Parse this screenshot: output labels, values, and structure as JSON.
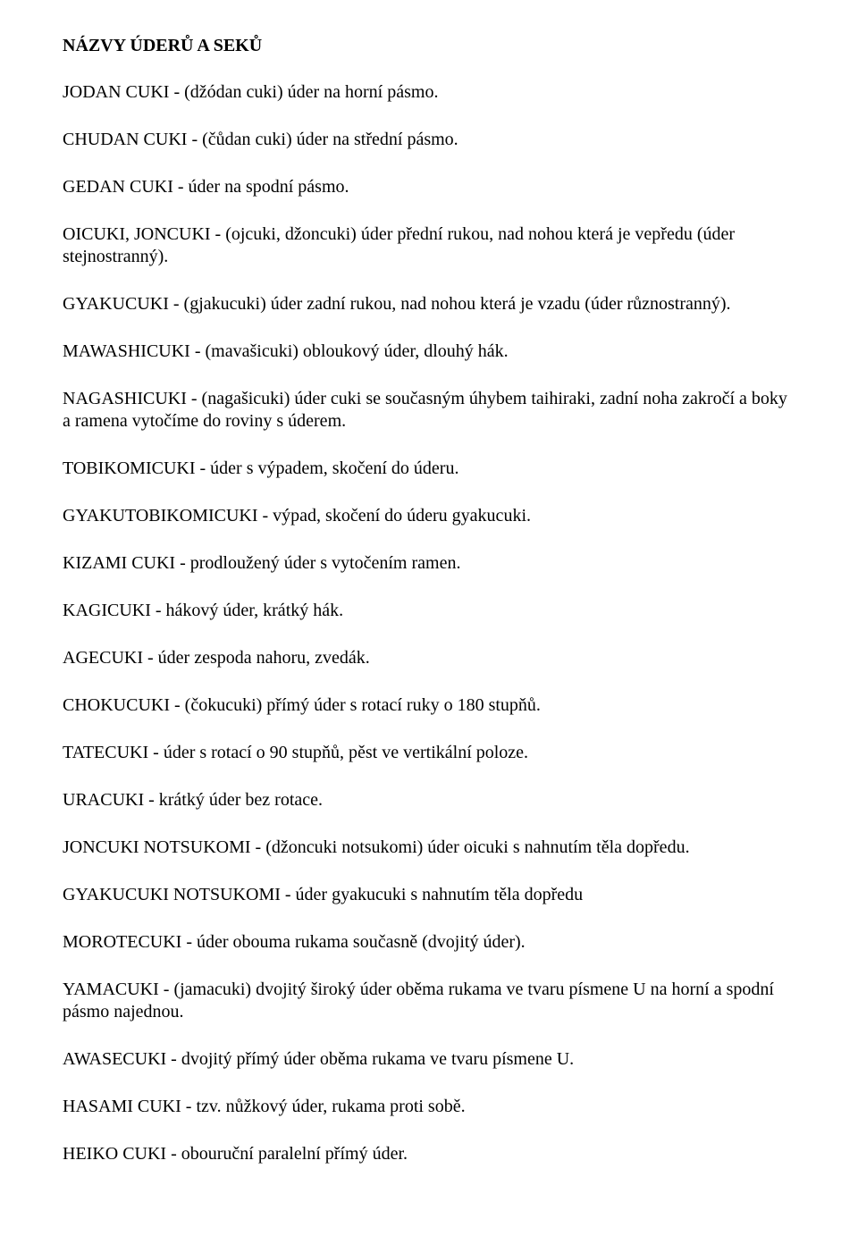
{
  "heading": "NÁZVY ÚDERŮ A SEKŮ",
  "entries": [
    "JODAN CUKI - (džódan cuki) úder na horní pásmo.",
    "CHUDAN CUKI - (čůdan cuki) úder na střední pásmo.",
    "GEDAN CUKI - úder na spodní pásmo.",
    "OICUKI, JONCUKI - (ojcuki, džoncuki) úder přední rukou, nad nohou která je vepředu (úder stejnostranný).",
    "GYAKUCUKI - (gjakucuki) úder zadní rukou, nad nohou která je vzadu (úder různostranný).",
    "MAWASHICUKI - (mavašicuki) obloukový úder, dlouhý hák.",
    "NAGASHICUKI - (nagašicuki) úder cuki se současným úhybem taihiraki, zadní noha zakročí a boky a ramena vytočíme do roviny s úderem.",
    "TOBIKOMICUKI - úder s výpadem, skočení do úderu.",
    "GYAKUTOBIKOMICUKI - výpad, skočení do úderu gyakucuki.",
    "KIZAMI CUKI - prodloužený úder s vytočením ramen.",
    "KAGICUKI - hákový úder, krátký hák.",
    "AGECUKI - úder zespoda nahoru, zvedák.",
    "CHOKUCUKI - (čokucuki) přímý úder s rotací ruky o 180 stupňů.",
    "TATECUKI - úder s rotací o 90 stupňů, pěst ve vertikální poloze.",
    "URACUKI - krátký úder bez rotace.",
    "JONCUKI NOTSUKOMI - (džoncuki notsukomi) úder oicuki s nahnutím těla dopředu.",
    "GYAKUCUKI NOTSUKOMI - úder gyakucuki s nahnutím těla dopředu",
    "MOROTECUKI - úder obouma rukama současně (dvojitý úder).",
    "YAMACUKI - (jamacuki) dvojitý široký úder oběma rukama ve tvaru písmene U na horní a spodní pásmo najednou.",
    "AWASECUKI - dvojitý přímý úder oběma rukama ve tvaru písmene U.",
    "HASAMI CUKI - tzv. nůžkový úder, rukama proti sobě.",
    "HEIKO CUKI - obouruční paralelní přímý úder."
  ]
}
